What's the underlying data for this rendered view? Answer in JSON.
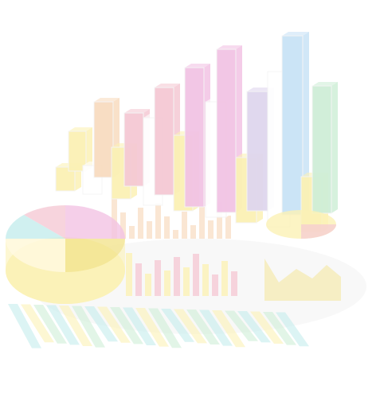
{
  "illustration": {
    "subject": "faded-3d-charts-graphic",
    "colors": {
      "yellow": "#fbf1b5",
      "yellow_dark": "#f3e48f",
      "peach": "#f8dcc0",
      "pink": "#f5c9d4",
      "magenta": "#f2c3e4",
      "lilac": "#dfd6ee",
      "sky": "#c9e3f6",
      "mint": "#cfeed7",
      "teal": "#c4ecec",
      "cream": "#fff8dc",
      "white": "#ffffff",
      "shadow": "#f2f2f2"
    }
  }
}
